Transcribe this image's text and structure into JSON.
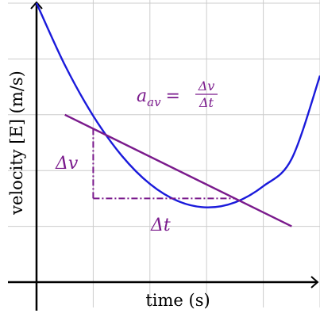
{
  "chart_data": {
    "type": "line",
    "title": "",
    "xlabel": "time (s)",
    "ylabel": "velocity [E] (m/s)",
    "xlim": [
      -0.05,
      5.1
    ],
    "ylim": [
      -0.05,
      5.0
    ],
    "grid": true,
    "series": [
      {
        "x": [
          0,
          0.5,
          1,
          1.5,
          2,
          2.5,
          3,
          3.5,
          4,
          4.5,
          5
        ],
        "y": [
          5.0,
          3.89,
          2.98,
          2.27,
          1.76,
          1.45,
          1.34,
          1.43,
          1.72,
          2.21,
          3.7
        ],
        "color": "#1a1adb"
      }
    ],
    "secant": {
      "from": [
        0.5,
        3.0
      ],
      "to": [
        4.5,
        1.0
      ],
      "color": "#7a1a8c"
    },
    "points": {
      "p1": [
        1.0,
        2.75
      ],
      "p2": [
        3.5,
        1.5
      ]
    },
    "annotations": {
      "average_acceleration": {
        "lhs": "a",
        "sub": "av",
        "eq": "=",
        "num": "Δv",
        "den": "Δt"
      },
      "delta_v": "Δv",
      "delta_t": "Δt"
    },
    "colors": {
      "curve": "#1a1adb",
      "secant": "#7a1a8c",
      "grid": "#cccccc",
      "axis": "#000000"
    }
  }
}
